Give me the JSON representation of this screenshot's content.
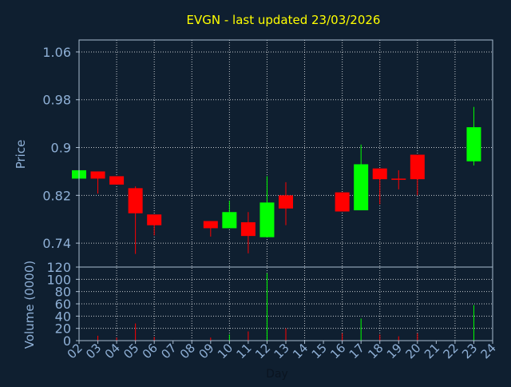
{
  "colors": {
    "background": "#0f1f30",
    "frame": "#a9bcd0",
    "text": "#8fb0d6",
    "title": "#ffff00",
    "up": "#00ff00",
    "down": "#ff0000"
  },
  "chart_data": [
    {
      "type": "candlestick",
      "title": "EVGN - last updated 23/03/2026",
      "ylabel": "Price",
      "xlim": [
        2,
        24
      ],
      "ylim": [
        0.7,
        1.08
      ],
      "yticks": [
        "1.06",
        "0.98",
        "0.9",
        "0.82",
        "0.74"
      ],
      "ytick_values": [
        1.06,
        0.98,
        0.9,
        0.82,
        0.74
      ],
      "grid": true,
      "candles": [
        {
          "day": 2,
          "open": 0.848,
          "close": 0.862,
          "high": 0.862,
          "low": 0.848
        },
        {
          "day": 3,
          "open": 0.86,
          "close": 0.848,
          "high": 0.86,
          "low": 0.823
        },
        {
          "day": 4,
          "open": 0.852,
          "close": 0.838,
          "high": 0.852,
          "low": 0.838
        },
        {
          "day": 5,
          "open": 0.832,
          "close": 0.79,
          "high": 0.835,
          "low": 0.722
        },
        {
          "day": 6,
          "open": 0.788,
          "close": 0.77,
          "high": 0.788,
          "low": 0.753
        },
        {
          "day": 9,
          "open": 0.777,
          "close": 0.765,
          "high": 0.777,
          "low": 0.751
        },
        {
          "day": 10,
          "open": 0.765,
          "close": 0.792,
          "high": 0.811,
          "low": 0.765
        },
        {
          "day": 11,
          "open": 0.775,
          "close": 0.752,
          "high": 0.792,
          "low": 0.723
        },
        {
          "day": 12,
          "open": 0.75,
          "close": 0.808,
          "high": 0.852,
          "low": 0.75
        },
        {
          "day": 13,
          "open": 0.82,
          "close": 0.798,
          "high": 0.842,
          "low": 0.77
        },
        {
          "day": 16,
          "open": 0.825,
          "close": 0.793,
          "high": 0.825,
          "low": 0.793
        },
        {
          "day": 17,
          "open": 0.795,
          "close": 0.872,
          "high": 0.905,
          "low": 0.795
        },
        {
          "day": 18,
          "open": 0.865,
          "close": 0.847,
          "high": 0.865,
          "low": 0.805
        },
        {
          "day": 19,
          "open": 0.848,
          "close": 0.846,
          "high": 0.862,
          "low": 0.83
        },
        {
          "day": 20,
          "open": 0.888,
          "close": 0.847,
          "high": 0.888,
          "low": 0.82
        },
        {
          "day": 23,
          "open": 0.877,
          "close": 0.934,
          "high": 0.968,
          "low": 0.87
        }
      ]
    },
    {
      "type": "bar",
      "ylabel": "Volume (0000)",
      "xlabel": "Day",
      "ylim": [
        0,
        120
      ],
      "yticks": [
        "120",
        "100",
        "80",
        "60",
        "40",
        "20",
        "0"
      ],
      "ytick_values": [
        120,
        100,
        80,
        60,
        40,
        20,
        0
      ],
      "x_ticks": [
        "02",
        "03",
        "04",
        "05",
        "06",
        "07",
        "08",
        "09",
        "10",
        "11",
        "12",
        "13",
        "14",
        "15",
        "16",
        "17",
        "18",
        "19",
        "20",
        "21",
        "22",
        "23",
        "24"
      ],
      "x_tick_values": [
        2,
        3,
        4,
        5,
        6,
        7,
        8,
        9,
        10,
        11,
        12,
        13,
        14,
        15,
        16,
        17,
        18,
        19,
        20,
        21,
        22,
        23,
        24
      ],
      "grid": true,
      "bars": [
        {
          "day": 2,
          "value": 2,
          "color": "up"
        },
        {
          "day": 3,
          "value": 8,
          "color": "down"
        },
        {
          "day": 4,
          "value": 5,
          "color": "down"
        },
        {
          "day": 5,
          "value": 28,
          "color": "down"
        },
        {
          "day": 6,
          "value": 6,
          "color": "down"
        },
        {
          "day": 9,
          "value": 5,
          "color": "down"
        },
        {
          "day": 10,
          "value": 10,
          "color": "up"
        },
        {
          "day": 11,
          "value": 15,
          "color": "down"
        },
        {
          "day": 12,
          "value": 110,
          "color": "up"
        },
        {
          "day": 13,
          "value": 20,
          "color": "down"
        },
        {
          "day": 16,
          "value": 12,
          "color": "down"
        },
        {
          "day": 17,
          "value": 36,
          "color": "up"
        },
        {
          "day": 18,
          "value": 10,
          "color": "down"
        },
        {
          "day": 19,
          "value": 7,
          "color": "down"
        },
        {
          "day": 20,
          "value": 12,
          "color": "down"
        },
        {
          "day": 23,
          "value": 58,
          "color": "up"
        }
      ]
    }
  ]
}
